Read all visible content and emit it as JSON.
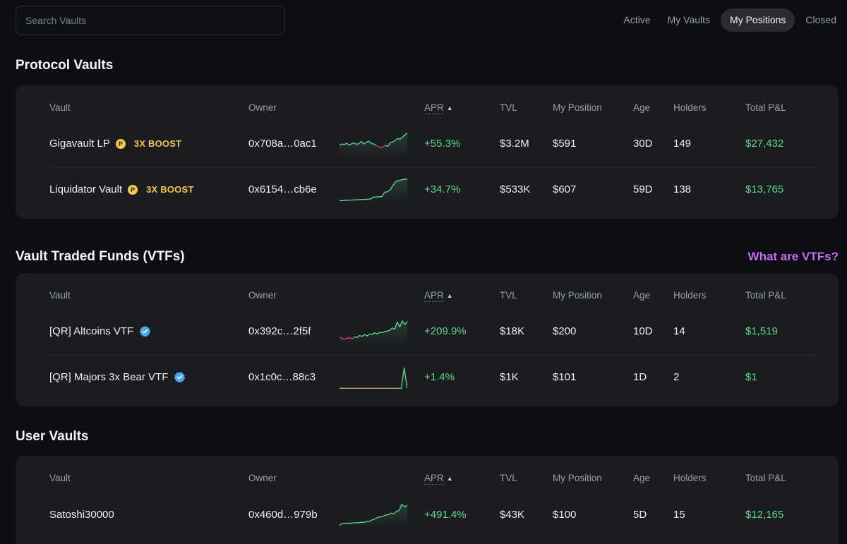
{
  "search": {
    "placeholder": "Search Vaults"
  },
  "filter_tabs": [
    {
      "label": "Active",
      "active": false
    },
    {
      "label": "My Vaults",
      "active": false
    },
    {
      "label": "My Positions",
      "active": true
    },
    {
      "label": "Closed",
      "active": false
    }
  ],
  "columns": {
    "vault": "Vault",
    "owner": "Owner",
    "apr": "APR",
    "tvl": "TVL",
    "position": "My Position",
    "age": "Age",
    "holders": "Holders",
    "pnl": "Total P&L"
  },
  "colors": {
    "positive": "#5ed98a",
    "negative": "#e0425d",
    "boost": "#f2c94c",
    "link": "#c86df0",
    "verified": "#4aa8f0"
  },
  "sections": [
    {
      "title": "Protocol Vaults",
      "rows": [
        {
          "vault": "Gigavault LP",
          "badge": "coin-icon",
          "boost": "3X BOOST",
          "owner": "0x708a…0ac1",
          "apr": "+55.3%",
          "tvl": "$3.2M",
          "position": "$591",
          "age": "30D",
          "holders": "149",
          "pnl": "$27,432",
          "sparkline": [
            0.55,
            0.5,
            0.52,
            0.47,
            0.55,
            0.5,
            0.45,
            0.52,
            0.48,
            0.4,
            0.5,
            0.44,
            0.38,
            0.47,
            0.5,
            0.55,
            0.6,
            0.66,
            0.62,
            0.56,
            0.6,
            0.45,
            0.42,
            0.35,
            0.28,
            0.3,
            0.22,
            0.12,
            0.05
          ],
          "sparkline_colors": [
            "pos",
            "pos",
            "pos",
            "pos",
            "pos",
            "pos",
            "pos",
            "pos",
            "pos",
            "pos",
            "pos",
            "pos",
            "pos",
            "pos",
            "pos",
            "neg",
            "neg",
            "neg",
            "neg",
            "pos",
            "pos",
            "pos",
            "pos",
            "pos",
            "pos",
            "pos",
            "pos",
            "pos"
          ]
        },
        {
          "vault": "Liquidator Vault",
          "badge": "coin-icon",
          "boost": "3X BOOST",
          "owner": "0x6154…cb6e",
          "apr": "+34.7%",
          "tvl": "$533K",
          "position": "$607",
          "age": "59D",
          "holders": "138",
          "pnl": "$13,765",
          "sparkline": [
            0.95,
            0.95,
            0.94,
            0.93,
            0.93,
            0.92,
            0.92,
            0.91,
            0.9,
            0.9,
            0.89,
            0.88,
            0.8,
            0.8,
            0.79,
            0.78,
            0.6,
            0.58,
            0.5,
            0.3,
            0.15,
            0.12,
            0.08,
            0.06,
            0.05
          ],
          "sparkline_colors": []
        }
      ]
    },
    {
      "title": "Vault Traded Funds (VTFs)",
      "link": "What are VTFs?",
      "rows": [
        {
          "vault": "[QR] Altcoins VTF",
          "badge": "verified-icon",
          "owner": "0x392c…2f5f",
          "apr": "+209.9%",
          "tvl": "$18K",
          "position": "$200",
          "age": "10D",
          "holders": "14",
          "pnl": "$1,519",
          "sparkline": [
            0.72,
            0.78,
            0.82,
            0.78,
            0.75,
            0.8,
            0.72,
            0.74,
            0.66,
            0.7,
            0.62,
            0.68,
            0.6,
            0.62,
            0.55,
            0.6,
            0.52,
            0.55,
            0.5,
            0.48,
            0.45,
            0.35,
            0.4,
            0.1,
            0.3,
            0.05,
            0.2,
            0.08
          ],
          "sparkline_colors": [
            "neg",
            "neg",
            "neg",
            "neg",
            "neg",
            "neg",
            "pos",
            "pos",
            "pos",
            "pos",
            "pos",
            "pos",
            "pos",
            "pos",
            "pos",
            "pos",
            "pos",
            "pos",
            "pos",
            "pos",
            "pos",
            "pos",
            "pos",
            "pos",
            "pos",
            "pos",
            "pos"
          ]
        },
        {
          "vault": "[QR] Majors 3x Bear VTF",
          "badge": "verified-icon",
          "owner": "0x1c0c…88c3",
          "apr": "+1.4%",
          "tvl": "$1K",
          "position": "$101",
          "age": "1D",
          "holders": "2",
          "pnl": "$1",
          "sparkline": [
            0.95,
            0.95,
            0.95,
            0.95,
            0.95,
            0.95,
            0.95,
            0.95,
            0.95,
            0.95,
            0.95,
            0.95,
            0.95,
            0.95,
            0.95,
            0.95,
            0.95,
            0.95,
            0.95,
            0.95,
            0.95,
            0.1,
            0.95
          ],
          "sparkline_colors": [
            "neu",
            "neu",
            "neu",
            "neu",
            "neu",
            "neu",
            "neu",
            "neu",
            "neu",
            "neu",
            "neu",
            "neu",
            "neu",
            "neu",
            "neu",
            "neu",
            "neu",
            "neu",
            "neu",
            "neu",
            "pos",
            "pos"
          ]
        }
      ]
    },
    {
      "title": "User Vaults",
      "rows": [
        {
          "vault": "Satoshi30000",
          "owner": "0x460d…979b",
          "apr": "+491.4%",
          "tvl": "$43K",
          "position": "$100",
          "age": "5D",
          "holders": "15",
          "pnl": "$12,165",
          "sparkline": [
            0.92,
            0.85,
            0.85,
            0.84,
            0.84,
            0.83,
            0.82,
            0.82,
            0.8,
            0.8,
            0.78,
            0.76,
            0.7,
            0.66,
            0.6,
            0.58,
            0.55,
            0.5,
            0.48,
            0.42,
            0.45,
            0.35,
            0.3,
            0.05,
            0.15,
            0.1
          ],
          "sparkline_colors": []
        }
      ]
    }
  ]
}
